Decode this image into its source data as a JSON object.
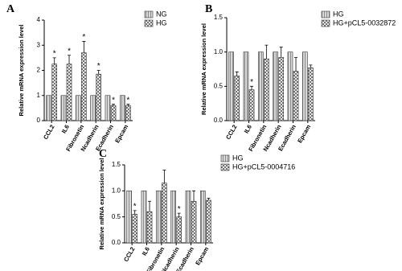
{
  "chart_data": [
    {
      "type": "bar",
      "panel": "A",
      "ylabel": "Relative mRNA expression level",
      "categories": [
        "CCL2",
        "IL6",
        "Fibronetin",
        "Ncadherin",
        "Ecadherin",
        "Epcam"
      ],
      "ylim": [
        0,
        4
      ],
      "yticks": [
        0,
        1,
        2,
        3,
        4
      ],
      "series": [
        {
          "name": "NG",
          "color": "#d9d9d9",
          "pattern": "vertical",
          "values": [
            1,
            1,
            1,
            1,
            1,
            1
          ]
        },
        {
          "name": "HG",
          "color": "#ffffff",
          "pattern": "crosshatch",
          "values": [
            2.25,
            2.25,
            2.7,
            1.85,
            0.6,
            0.6
          ],
          "errors": [
            0.25,
            0.35,
            0.45,
            0.15,
            0.05,
            0.05
          ],
          "significance": [
            "*",
            "*",
            "*",
            "*",
            "*",
            "*"
          ]
        }
      ]
    },
    {
      "type": "bar",
      "panel": "B",
      "ylabel": "Relative mRNA expression level",
      "categories": [
        "CCL2",
        "IL6",
        "Fibronetin",
        "Ncadherin",
        "Ecadherin",
        "Epcam"
      ],
      "ylim": [
        0,
        1.5
      ],
      "yticks": [
        {
          "value": 0,
          "label": "0.0"
        },
        {
          "value": 0.5,
          "label": "0.5"
        },
        {
          "value": 1,
          "label": "1.0"
        },
        {
          "value": 1.5,
          "label": "1.5"
        }
      ],
      "series": [
        {
          "name": "HG",
          "color": "#d9d9d9",
          "pattern": "vertical",
          "values": [
            1,
            1,
            1,
            1,
            1,
            1
          ]
        },
        {
          "name": "HG+pCL5-0032872",
          "color": "#ffffff",
          "pattern": "crosshatch",
          "values": [
            0.65,
            0.45,
            0.9,
            0.92,
            0.72,
            0.77
          ],
          "errors": [
            0.06,
            0.05,
            0.2,
            0.15,
            0.2,
            0.04
          ],
          "significance": [
            null,
            "*",
            null,
            null,
            null,
            null
          ]
        }
      ]
    },
    {
      "type": "bar",
      "panel": "C",
      "ylabel": "Relative mRNA expression level",
      "categories": [
        "CCL2",
        "IL6",
        "Fibronetin",
        "Ncadherin",
        "Ecadherin",
        "Epcam"
      ],
      "ylim": [
        0,
        1.5
      ],
      "yticks": [
        {
          "value": 0,
          "label": "0.0"
        },
        {
          "value": 0.5,
          "label": "0.5"
        },
        {
          "value": 1,
          "label": "1.0"
        },
        {
          "value": 1.5,
          "label": "1.5"
        }
      ],
      "series": [
        {
          "name": "HG",
          "color": "#d9d9d9",
          "pattern": "vertical",
          "values": [
            1,
            1,
            1,
            1,
            1,
            1
          ]
        },
        {
          "name": "HG+pCL5-0004716",
          "color": "#ffffff",
          "pattern": "crosshatch",
          "values": [
            0.55,
            0.6,
            1.15,
            0.5,
            0.8,
            0.82
          ],
          "errors": [
            0.07,
            0.2,
            0.25,
            0.07,
            0.2,
            0.04
          ],
          "significance": [
            "*",
            null,
            null,
            "*",
            null,
            null
          ]
        }
      ]
    }
  ]
}
